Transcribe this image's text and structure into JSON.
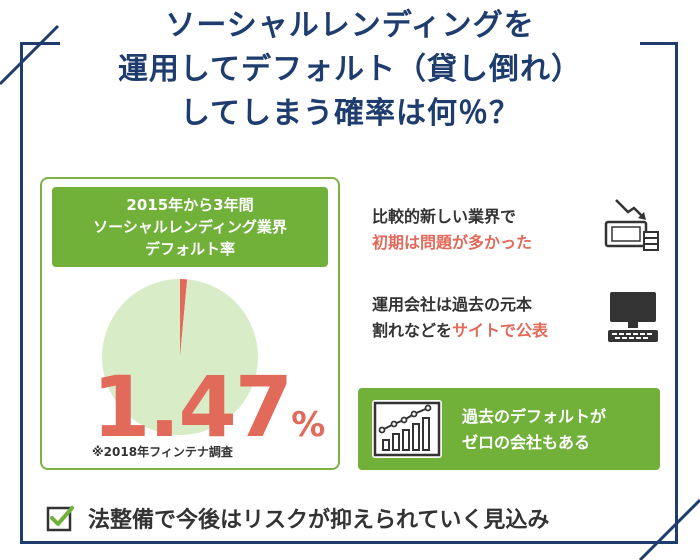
{
  "title": {
    "line1": "ソーシャルレンディングを",
    "line2": "運用してデフォルト（貸し倒れ）",
    "line3": "してしまう確率は何％？"
  },
  "stat": {
    "heading_line1": "2015年から3年間",
    "heading_line2": "ソーシャルレンディング業界",
    "heading_line3": "デフォルト率",
    "value": "1.47",
    "unit": "%",
    "source": "※2018年フィンテナ調査"
  },
  "chart_data": {
    "type": "pie",
    "values": [
      1.47,
      98.53
    ]
  },
  "points": [
    {
      "line1": "比較的新しい業界で",
      "line2": "初期は問題が多かった",
      "icon": "falling-money-icon"
    },
    {
      "line1": "運用会社は過去の元本",
      "line2_prefix": "割れなどを",
      "line2_highlight": "サイトで公表",
      "icon": "computer-icon"
    }
  ],
  "highlight_box": {
    "line1": "過去のデフォルトが",
    "line2": "ゼロの会社もある",
    "icon": "growth-chart-icon"
  },
  "conclusion": {
    "text": "法整備で今後はリスクが抑えられていく見込み",
    "icon": "checkbox-icon"
  },
  "colors": {
    "navy": "#1e3d6e",
    "green": "#71b13a",
    "accent": "#e26a5a",
    "pie_fill": "#d9ecc8"
  }
}
